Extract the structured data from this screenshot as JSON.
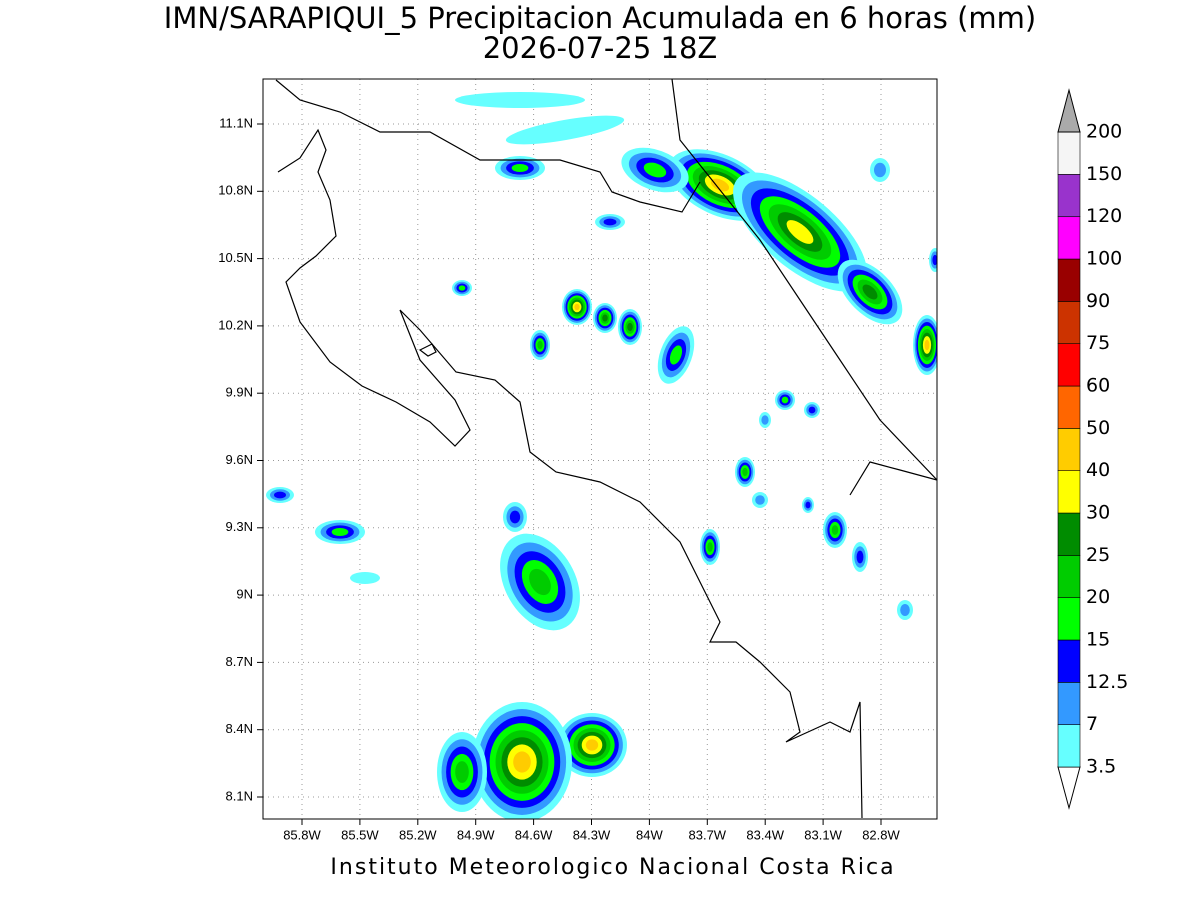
{
  "title": "IMN/SARAPIQUI_5 Precipitacion Acumulada en 6 horas (mm)",
  "subtitle": "2026-07-25 18Z",
  "map": {
    "lat_ticks": [
      "11.1N",
      "10.8N",
      "10.5N",
      "10.2N",
      "9.9N",
      "9.6N",
      "9.3N",
      "9N",
      "8.7N",
      "8.4N",
      "8.1N"
    ],
    "lon_ticks": [
      "85.8W",
      "85.5W",
      "85.2W",
      "84.9W",
      "84.6W",
      "84.3W",
      "84W",
      "83.7W",
      "83.4W",
      "83.1W",
      "82.8W"
    ]
  },
  "legend": {
    "levels": [
      "3.5",
      "7",
      "12.5",
      "15",
      "20",
      "25",
      "30",
      "40",
      "50",
      "60",
      "75",
      "90",
      "100",
      "120",
      "150",
      "200"
    ],
    "colors": [
      "#66ffff",
      "#3399ff",
      "#0000ff",
      "#00ff00",
      "#00cc00",
      "#008c00",
      "#ffff00",
      "#ffcc00",
      "#ff6600",
      "#ff0000",
      "#cc3300",
      "#990000",
      "#ff00ff",
      "#9933cc",
      "#f5f5f5"
    ],
    "under_color": "#ffffff",
    "over_color": "#aaaaaa"
  },
  "footer": "Instituto Meteorologico Nacional Costa Rica"
}
